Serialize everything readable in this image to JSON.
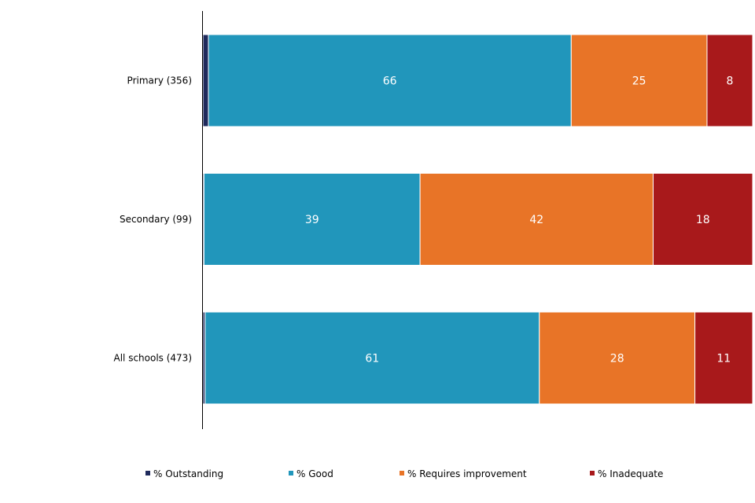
{
  "chart_data": {
    "type": "bar",
    "orientation": "horizontal",
    "stacked": true,
    "categories": [
      "Primary (356)",
      "Secondary (99)",
      "All schools (473)"
    ],
    "series": [
      {
        "name": "% Outstanding",
        "color": "#1f2a5c",
        "values": [
          1,
          0.2,
          0.4
        ],
        "labels": [
          "1",
          "",
          ""
        ]
      },
      {
        "name": "% Good",
        "color": "#2196bb",
        "values": [
          66,
          39.3,
          60.8
        ],
        "labels": [
          "66",
          "39",
          "61"
        ]
      },
      {
        "name": "% Requires improvement",
        "color": "#e87427",
        "values": [
          24.7,
          42.4,
          28.3
        ],
        "labels": [
          "25",
          "42",
          "28"
        ]
      },
      {
        "name": "% Inadequate",
        "color": "#a8191b",
        "values": [
          8.3,
          18.1,
          10.5
        ],
        "labels": [
          "8",
          "18",
          "11"
        ]
      }
    ],
    "xlim": [
      0,
      100
    ],
    "grid": false,
    "legend_position": "bottom"
  }
}
